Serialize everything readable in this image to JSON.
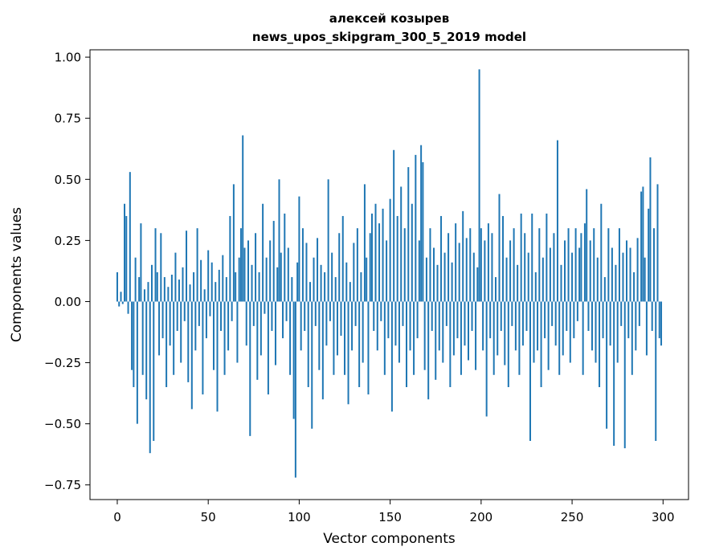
{
  "title": {
    "line1": "алексей козырев",
    "line2": "news_upos_skipgram_300_5_2019 model"
  },
  "chart_data": {
    "type": "bar",
    "title": "алексей козырев\nnews_upos_skipgram_300_5_2019 model",
    "xlabel": "Vector components",
    "ylabel": "Components values",
    "bar_color": "#1f77b4",
    "axis_color": "#000000",
    "xlim": [
      -15,
      314
    ],
    "ylim": [
      -0.81,
      1.03
    ],
    "xticks": [
      0,
      50,
      100,
      150,
      200,
      250,
      300
    ],
    "xtick_labels": [
      "0",
      "50",
      "100",
      "150",
      "200",
      "250",
      "300"
    ],
    "yticks": [
      1.0,
      0.75,
      0.5,
      0.25,
      0.0,
      -0.25,
      -0.5,
      -0.75
    ],
    "ytick_labels": [
      "1.00",
      "0.75",
      "0.50",
      "0.25",
      "0.00",
      "−0.25",
      "−0.50",
      "−0.75"
    ],
    "legend": null,
    "grid": false,
    "values": [
      0.12,
      -0.02,
      0.04,
      -0.01,
      0.4,
      0.35,
      -0.05,
      0.53,
      -0.28,
      -0.35,
      0.18,
      -0.5,
      0.1,
      0.32,
      -0.3,
      0.05,
      -0.4,
      0.08,
      -0.62,
      0.15,
      -0.57,
      0.3,
      0.12,
      -0.22,
      0.28,
      -0.15,
      0.1,
      -0.35,
      0.06,
      -0.18,
      0.11,
      -0.3,
      0.2,
      -0.12,
      0.09,
      -0.25,
      0.14,
      -0.08,
      0.29,
      -0.33,
      0.07,
      -0.44,
      0.12,
      -0.2,
      0.3,
      -0.1,
      0.17,
      -0.38,
      0.05,
      -0.15,
      0.21,
      -0.06,
      0.16,
      -0.28,
      0.08,
      -0.45,
      0.13,
      -0.12,
      0.19,
      -0.3,
      0.1,
      -0.2,
      0.35,
      -0.08,
      0.48,
      0.12,
      -0.25,
      0.18,
      0.3,
      0.68,
      0.22,
      -0.18,
      0.25,
      -0.55,
      0.15,
      -0.1,
      0.28,
      -0.32,
      0.12,
      -0.22,
      0.4,
      -0.05,
      0.18,
      -0.38,
      0.25,
      -0.12,
      0.33,
      -0.26,
      0.14,
      0.5,
      0.2,
      -0.15,
      0.36,
      -0.08,
      0.22,
      -0.3,
      0.1,
      -0.48,
      -0.72,
      0.16,
      0.43,
      -0.2,
      0.3,
      -0.12,
      0.24,
      -0.35,
      0.08,
      -0.52,
      0.18,
      -0.1,
      0.26,
      -0.28,
      0.15,
      -0.4,
      0.12,
      -0.18,
      0.5,
      -0.08,
      0.2,
      -0.3,
      0.1,
      -0.22,
      0.28,
      -0.14,
      0.35,
      -0.3,
      0.16,
      -0.42,
      0.08,
      -0.2,
      0.24,
      -0.1,
      0.3,
      -0.35,
      0.12,
      -0.25,
      0.48,
      0.18,
      -0.38,
      0.28,
      0.36,
      -0.12,
      0.4,
      -0.2,
      0.32,
      -0.08,
      0.38,
      -0.3,
      0.25,
      -0.15,
      0.42,
      -0.45,
      0.62,
      -0.18,
      0.35,
      -0.25,
      0.47,
      -0.1,
      0.3,
      -0.35,
      0.55,
      -0.2,
      0.4,
      -0.3,
      0.6,
      -0.15,
      0.25,
      0.64,
      0.57,
      -0.28,
      0.18,
      -0.4,
      0.3,
      -0.12,
      0.22,
      -0.32,
      0.15,
      -0.2,
      0.35,
      -0.25,
      0.2,
      -0.1,
      0.28,
      -0.35,
      0.16,
      -0.22,
      0.32,
      -0.15,
      0.24,
      -0.3,
      0.37,
      -0.18,
      0.26,
      -0.24,
      0.3,
      -0.12,
      0.2,
      -0.28,
      0.14,
      0.95,
      0.3,
      -0.2,
      0.25,
      -0.47,
      0.32,
      -0.15,
      0.28,
      -0.3,
      0.1,
      -0.22,
      0.44,
      -0.12,
      0.35,
      -0.26,
      0.18,
      -0.35,
      0.25,
      -0.1,
      0.3,
      -0.2,
      0.15,
      -0.3,
      0.36,
      -0.18,
      0.28,
      -0.12,
      0.2,
      -0.57,
      0.36,
      -0.25,
      0.12,
      -0.2,
      0.3,
      -0.35,
      0.18,
      -0.15,
      0.36,
      -0.28,
      0.22,
      -0.1,
      0.28,
      -0.18,
      0.66,
      -0.3,
      0.15,
      -0.22,
      0.25,
      -0.12,
      0.3,
      -0.25,
      0.2,
      -0.15,
      0.3,
      -0.08,
      0.22,
      0.28,
      -0.3,
      0.32,
      0.46,
      -0.12,
      0.25,
      -0.2,
      0.3,
      -0.25,
      0.18,
      -0.35,
      0.4,
      -0.15,
      0.1,
      -0.52,
      0.3,
      -0.18,
      0.22,
      -0.59,
      0.15,
      -0.25,
      0.3,
      -0.1,
      0.2,
      -0.6,
      0.25,
      -0.15,
      0.22,
      -0.3,
      0.12,
      -0.2,
      0.26,
      -0.1,
      0.45,
      0.47,
      0.18,
      -0.22,
      0.38,
      0.59,
      -0.12,
      0.3,
      -0.57,
      0.48,
      -0.15,
      -0.18
    ]
  }
}
